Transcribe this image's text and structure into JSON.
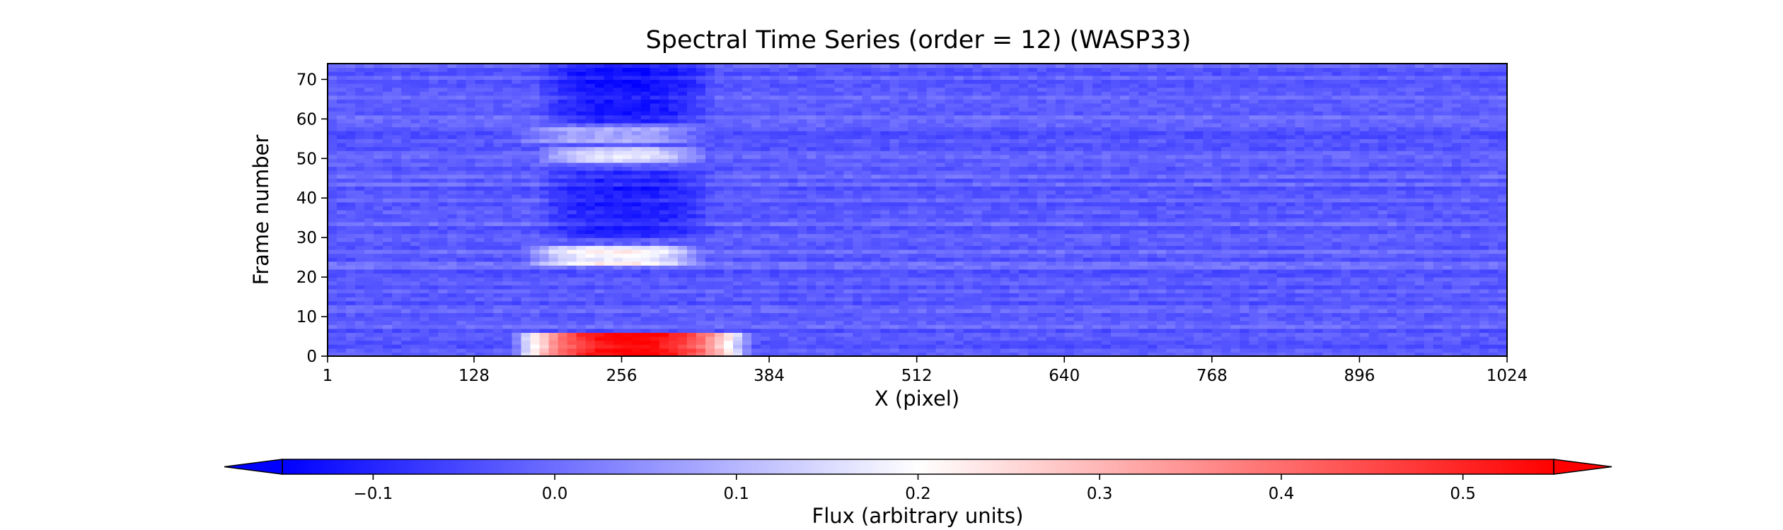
{
  "chart_data": {
    "type": "heatmap",
    "title": "Spectral Time Series (order = 12) (WASP33)",
    "xlabel": "X (pixel)",
    "ylabel": "Frame number",
    "xlim": [
      1,
      1024
    ],
    "ylim": [
      0,
      74
    ],
    "xticks": [
      1,
      128,
      256,
      384,
      512,
      640,
      768,
      896,
      1024
    ],
    "yticks": [
      0,
      10,
      20,
      30,
      40,
      50,
      60,
      70
    ],
    "colormap": "bwr",
    "colorbar": {
      "label": "Flux (arbitrary units)",
      "vmin": -0.15,
      "vmax": 0.55,
      "ticks": [
        -0.1,
        0.0,
        0.1,
        0.2,
        0.3,
        0.4,
        0.5
      ],
      "tick_labels": [
        "−0.1",
        "0.0",
        "0.1",
        "0.2",
        "0.3",
        "0.4",
        "0.5"
      ],
      "extend": "both",
      "orientation": "horizontal"
    },
    "colors": {
      "min": "#0000ff",
      "mid": "#ffffff",
      "max": "#ff0000"
    },
    "grid": false,
    "baseline_flux": -0.02,
    "features": [
      {
        "region": "emission",
        "x_range": [
          160,
          370
        ],
        "frames": [
          0,
          6
        ],
        "peak_flux": 0.55
      },
      {
        "region": "bright band",
        "x_range": [
          170,
          330
        ],
        "frames": [
          23,
          28
        ],
        "peak_flux": 0.2
      },
      {
        "region": "bright band",
        "x_range": [
          180,
          330
        ],
        "frames": [
          49,
          53
        ],
        "peak_flux": 0.15
      },
      {
        "region": "bright band",
        "x_range": [
          160,
          330
        ],
        "frames": [
          54,
          58
        ],
        "peak_flux": 0.1
      },
      {
        "region": "dark band",
        "x_range": [
          180,
          340
        ],
        "frames": [
          30,
          47
        ],
        "peak_flux": -0.1
      },
      {
        "region": "dark band",
        "x_range": [
          180,
          340
        ],
        "frames": [
          59,
          74
        ],
        "peak_flux": -0.12
      }
    ]
  }
}
